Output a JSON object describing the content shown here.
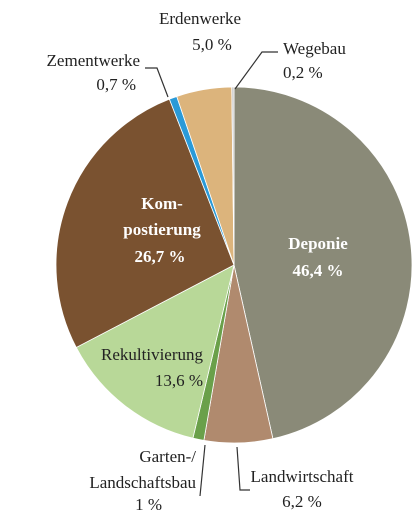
{
  "chart_data": {
    "type": "pie",
    "categories": [
      "Deponie",
      "Landwirtschaft",
      "Garten-/\nLandschaftsbau",
      "Rekultivierung",
      "Kom-\npostierung",
      "Zementwerke",
      "Erdenwerke",
      "Wegebau"
    ],
    "values": [
      46.4,
      6.2,
      1,
      13.6,
      26.7,
      0.7,
      5.0,
      0.2
    ],
    "value_labels": [
      "46,4 %",
      "6,2 %",
      "1 %",
      "13,6 %",
      "26,7 %",
      "0,7 %",
      "5,0 %",
      "0,2 %"
    ],
    "colors": [
      "#8a8a78",
      "#b08a6e",
      "#6aa04a",
      "#b8d898",
      "#7a5230",
      "#2a9ad8",
      "#dcb47c",
      "#c8c8c8"
    ]
  }
}
